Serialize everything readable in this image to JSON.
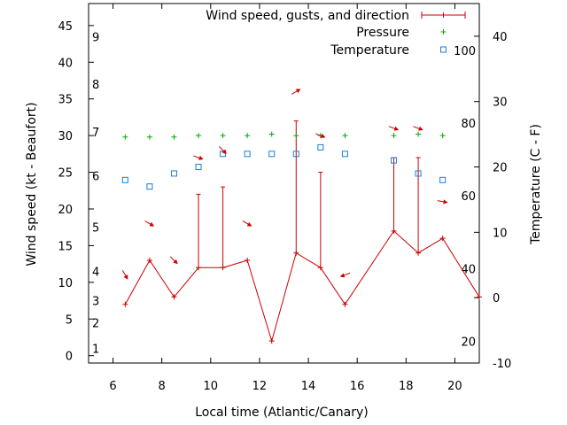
{
  "chart_data": {
    "type": "line",
    "xlabel": "Local time (Atlantic/Canary)",
    "ylabel_left": "Wind speed (kt - Beaufort)",
    "ylabel_right": "Temperature (C - F)",
    "xlim": [
      5,
      21
    ],
    "ylim_left": [
      -1,
      48
    ],
    "ylim_right": [
      -10,
      45
    ],
    "x_ticks": [
      6,
      8,
      10,
      12,
      14,
      16,
      18,
      20
    ],
    "y_left_ticks": [
      0,
      5,
      10,
      15,
      20,
      25,
      30,
      35,
      40,
      45
    ],
    "y_right_ticks": [
      -10,
      0,
      10,
      20,
      30,
      40
    ],
    "beaufort_labels": [
      {
        "label": "1",
        "kt": 1.0
      },
      {
        "label": "2",
        "kt": 4.5
      },
      {
        "label": "3",
        "kt": 7.5
      },
      {
        "label": "4",
        "kt": 11.5
      },
      {
        "label": "5",
        "kt": 17.5
      },
      {
        "label": "6",
        "kt": 24.5
      },
      {
        "label": "7",
        "kt": 30.5
      },
      {
        "label": "8",
        "kt": 37.0
      },
      {
        "label": "9",
        "kt": 43.5
      }
    ],
    "fahrenheit_labels": [
      {
        "label": "20",
        "c": -6.7
      },
      {
        "label": "40",
        "c": 4.4
      },
      {
        "label": "60",
        "c": 15.6
      },
      {
        "label": "80",
        "c": 26.7
      },
      {
        "label": "100",
        "c": 37.8
      }
    ],
    "legend": {
      "wind": "Wind speed, gusts, and direction",
      "pressure": "Pressure",
      "temperature": "Temperature"
    },
    "colors": {
      "wind": "#cc0000",
      "pressure": "#00aa00",
      "temperature": "#1a7fd6"
    },
    "wind": {
      "x": [
        6.5,
        7.5,
        8.5,
        9.5,
        10.5,
        11.5,
        12.5,
        13.5,
        14.5,
        15.5,
        17.5,
        18.5,
        19.5,
        21.0
      ],
      "speed": [
        7,
        13,
        8,
        12,
        12,
        13,
        2,
        14,
        12,
        7,
        17,
        14,
        16,
        8
      ],
      "gust": [
        null,
        null,
        null,
        22,
        23,
        null,
        null,
        32,
        25,
        null,
        27,
        27,
        null,
        null
      ]
    },
    "direction_arrows": [
      {
        "x": 6.5,
        "kt": 11,
        "angle": 60
      },
      {
        "x": 7.5,
        "kt": 18,
        "angle": 30
      },
      {
        "x": 8.5,
        "kt": 13,
        "angle": 45
      },
      {
        "x": 9.5,
        "kt": 27,
        "angle": 20
      },
      {
        "x": 10.5,
        "kt": 28,
        "angle": 45
      },
      {
        "x": 11.5,
        "kt": 18,
        "angle": 30
      },
      {
        "x": 13.5,
        "kt": 36,
        "angle": -30
      },
      {
        "x": 14.5,
        "kt": 30,
        "angle": 20
      },
      {
        "x": 15.5,
        "kt": 11,
        "angle": 160
      },
      {
        "x": 17.5,
        "kt": 31,
        "angle": 20
      },
      {
        "x": 18.5,
        "kt": 31,
        "angle": 20
      },
      {
        "x": 19.5,
        "kt": 21,
        "angle": 10
      }
    ],
    "pressure": {
      "x": [
        6.5,
        7.5,
        8.5,
        9.5,
        10.5,
        11.5,
        12.5,
        13.5,
        14.5,
        15.5,
        17.5,
        18.5,
        19.5
      ],
      "kt": [
        29.8,
        29.8,
        29.8,
        30.0,
        30.0,
        30.0,
        30.2,
        30.0,
        30.0,
        30.0,
        30.0,
        30.2,
        30.0
      ]
    },
    "temperature": {
      "x": [
        6.5,
        7.5,
        8.5,
        9.5,
        10.5,
        11.5,
        12.5,
        13.5,
        14.5,
        15.5,
        17.5,
        18.5,
        19.5
      ],
      "c": [
        18,
        17,
        19,
        20,
        22,
        22,
        22,
        22,
        23,
        22,
        21,
        19,
        18
      ]
    }
  }
}
